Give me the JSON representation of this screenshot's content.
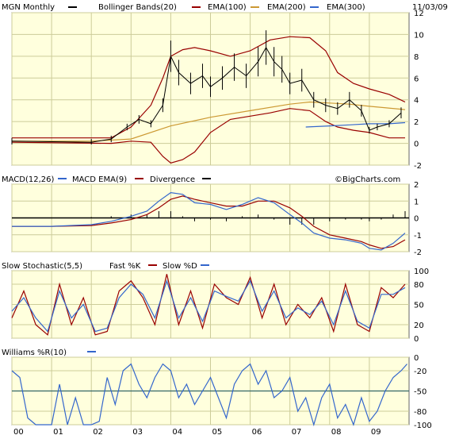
{
  "header": {
    "date": "11/03/09",
    "watermark": "©BigCharts.com"
  },
  "chart_data": [
    {
      "type": "line",
      "name": "price",
      "legend": [
        "MGN Monthly",
        "Bollinger Bands(20)",
        "EMA(100)",
        "EMA(200)",
        "EMA(300)"
      ],
      "x_ticks": [
        "00",
        "01",
        "02",
        "03",
        "04",
        "05",
        "06",
        "07",
        "08",
        "09"
      ],
      "y_ticks": [
        -2,
        0,
        2,
        4,
        6,
        8,
        10,
        12
      ],
      "ylim": [
        -2,
        12
      ],
      "colors": {
        "price": "#000000",
        "bb": "#990000",
        "ema100": "#990000",
        "ema200": "#cc9933",
        "ema300": "#3366cc"
      },
      "x_years": [
        2000.0,
        2002.0,
        2002.5,
        2002.9,
        2003.2,
        2003.5,
        2003.8,
        2004.0,
        2004.2,
        2004.5,
        2004.8,
        2005.0,
        2005.3,
        2005.6,
        2005.9,
        2006.2,
        2006.4,
        2006.6,
        2006.8,
        2007.0,
        2007.3,
        2007.6,
        2007.9,
        2008.2,
        2008.5,
        2008.8,
        2009.0,
        2009.2,
        2009.5,
        2009.8
      ],
      "close": [
        0.2,
        0.1,
        0.4,
        1.5,
        2.2,
        1.8,
        3.5,
        8.0,
        6.5,
        5.5,
        6.2,
        5.2,
        6.0,
        7.0,
        6.2,
        7.5,
        8.8,
        7.5,
        6.8,
        5.5,
        5.8,
        4.0,
        3.5,
        3.2,
        4.0,
        3.0,
        1.2,
        1.5,
        1.8,
        2.8
      ],
      "bb_upper_x": [
        2000.0,
        2002.5,
        2003.0,
        2003.5,
        2003.8,
        2004.0,
        2004.3,
        2004.6,
        2005.0,
        2005.5,
        2006.0,
        2006.5,
        2007.0,
        2007.5,
        2007.9,
        2008.2,
        2008.6,
        2009.0,
        2009.5,
        2009.9
      ],
      "bb_upper": [
        0.5,
        0.5,
        1.5,
        3.5,
        6.0,
        8.0,
        8.6,
        8.8,
        8.5,
        8.0,
        8.5,
        9.5,
        9.8,
        9.7,
        8.5,
        6.5,
        5.5,
        5.0,
        4.5,
        3.8
      ],
      "bb_lower": [
        0.1,
        0.0,
        0.2,
        0.1,
        -1.2,
        -1.8,
        -1.5,
        -0.8,
        1.0,
        2.2,
        2.5,
        2.8,
        3.2,
        3.0,
        2.0,
        1.5,
        1.2,
        1.0,
        0.5,
        0.5
      ],
      "ema200_x": [
        2000.0,
        2002.0,
        2003.0,
        2004.0,
        2005.0,
        2006.0,
        2007.0,
        2007.5,
        2008.0,
        2008.5,
        2009.0,
        2009.9
      ],
      "ema200": [
        0.2,
        0.2,
        0.4,
        1.6,
        2.4,
        3.0,
        3.6,
        3.8,
        3.7,
        3.6,
        3.4,
        3.1
      ],
      "ema300_x": [
        2007.4,
        2008.0,
        2008.5,
        2009.0,
        2009.5,
        2009.9
      ],
      "ema300": [
        1.5,
        1.6,
        1.7,
        1.8,
        1.8,
        1.9
      ]
    },
    {
      "type": "line",
      "name": "macd",
      "legend": [
        "MACD(12,26)",
        "MACD EMA(9)",
        "Divergence"
      ],
      "y_ticks": [
        -2,
        -1,
        0,
        1,
        2
      ],
      "ylim": [
        -2,
        2
      ],
      "colors": {
        "macd": "#3366cc",
        "signal": "#990000",
        "div": "#000000"
      },
      "x_years": [
        2000.0,
        2001.0,
        2002.0,
        2002.5,
        2003.0,
        2003.4,
        2003.7,
        2004.0,
        2004.3,
        2004.6,
        2005.0,
        2005.4,
        2005.8,
        2006.2,
        2006.6,
        2007.0,
        2007.3,
        2007.6,
        2008.0,
        2008.4,
        2008.8,
        2009.0,
        2009.3,
        2009.6,
        2009.9
      ],
      "macd": [
        -0.5,
        -0.5,
        -0.4,
        -0.2,
        0.1,
        0.4,
        1.0,
        1.5,
        1.4,
        0.9,
        0.8,
        0.5,
        0.8,
        1.2,
        0.9,
        0.2,
        -0.3,
        -0.9,
        -1.2,
        -1.3,
        -1.5,
        -1.8,
        -1.9,
        -1.5,
        -0.9
      ],
      "signal": [
        -0.5,
        -0.5,
        -0.45,
        -0.3,
        -0.1,
        0.2,
        0.6,
        1.1,
        1.3,
        1.1,
        0.9,
        0.7,
        0.7,
        1.0,
        1.0,
        0.6,
        0.1,
        -0.5,
        -1.0,
        -1.2,
        -1.4,
        -1.6,
        -1.8,
        -1.7,
        -1.3
      ]
    },
    {
      "type": "line",
      "name": "stochastic",
      "legend": [
        "Slow Stochastic(5,5)",
        "Fast %K",
        "Slow %D"
      ],
      "y_ticks": [
        0,
        20,
        50,
        80,
        100
      ],
      "ylim": [
        0,
        100
      ],
      "colors": {
        "k": "#990000",
        "d": "#3366cc"
      },
      "x_years": [
        2000.0,
        2000.3,
        2000.6,
        2000.9,
        2001.2,
        2001.5,
        2001.8,
        2002.1,
        2002.4,
        2002.7,
        2003.0,
        2003.3,
        2003.6,
        2003.9,
        2004.2,
        2004.5,
        2004.8,
        2005.1,
        2005.4,
        2005.7,
        2006.0,
        2006.3,
        2006.6,
        2006.9,
        2007.2,
        2007.5,
        2007.8,
        2008.1,
        2008.4,
        2008.7,
        2009.0,
        2009.3,
        2009.6,
        2009.9
      ],
      "k": [
        30,
        70,
        20,
        5,
        80,
        20,
        60,
        5,
        10,
        70,
        85,
        60,
        20,
        95,
        20,
        70,
        15,
        80,
        60,
        50,
        90,
        30,
        80,
        20,
        50,
        30,
        60,
        10,
        80,
        20,
        10,
        75,
        60,
        80
      ],
      "d": [
        40,
        60,
        30,
        10,
        70,
        30,
        50,
        10,
        15,
        60,
        80,
        65,
        30,
        85,
        30,
        60,
        25,
        70,
        62,
        55,
        85,
        40,
        70,
        30,
        45,
        35,
        55,
        20,
        70,
        25,
        15,
        65,
        65,
        75
      ]
    },
    {
      "type": "line",
      "name": "williams",
      "legend": [
        "Williams %R(10)"
      ],
      "y_ticks": [
        0,
        -20,
        -50,
        -80,
        -100
      ],
      "ylim": [
        -100,
        0
      ],
      "colors": {
        "r": "#3366cc",
        "mid": "#336666"
      },
      "x_years": [
        2000.0,
        2000.2,
        2000.4,
        2000.6,
        2000.8,
        2001.0,
        2001.2,
        2001.4,
        2001.6,
        2001.8,
        2002.0,
        2002.2,
        2002.4,
        2002.6,
        2002.8,
        2003.0,
        2003.2,
        2003.4,
        2003.6,
        2003.8,
        2004.0,
        2004.2,
        2004.4,
        2004.6,
        2004.8,
        2005.0,
        2005.2,
        2005.4,
        2005.6,
        2005.8,
        2006.0,
        2006.2,
        2006.4,
        2006.6,
        2006.8,
        2007.0,
        2007.2,
        2007.4,
        2007.6,
        2007.8,
        2008.0,
        2008.2,
        2008.4,
        2008.6,
        2008.8,
        2009.0,
        2009.2,
        2009.4,
        2009.6,
        2009.8,
        2009.95
      ],
      "r": [
        -20,
        -30,
        -90,
        -100,
        -100,
        -100,
        -40,
        -100,
        -60,
        -100,
        -100,
        -95,
        -30,
        -70,
        -20,
        -10,
        -40,
        -60,
        -30,
        -10,
        -20,
        -60,
        -40,
        -70,
        -50,
        -30,
        -60,
        -90,
        -40,
        -20,
        -10,
        -40,
        -20,
        -60,
        -50,
        -30,
        -80,
        -60,
        -100,
        -60,
        -40,
        -90,
        -70,
        -100,
        -60,
        -95,
        -80,
        -50,
        -30,
        -20,
        -10
      ]
    }
  ]
}
